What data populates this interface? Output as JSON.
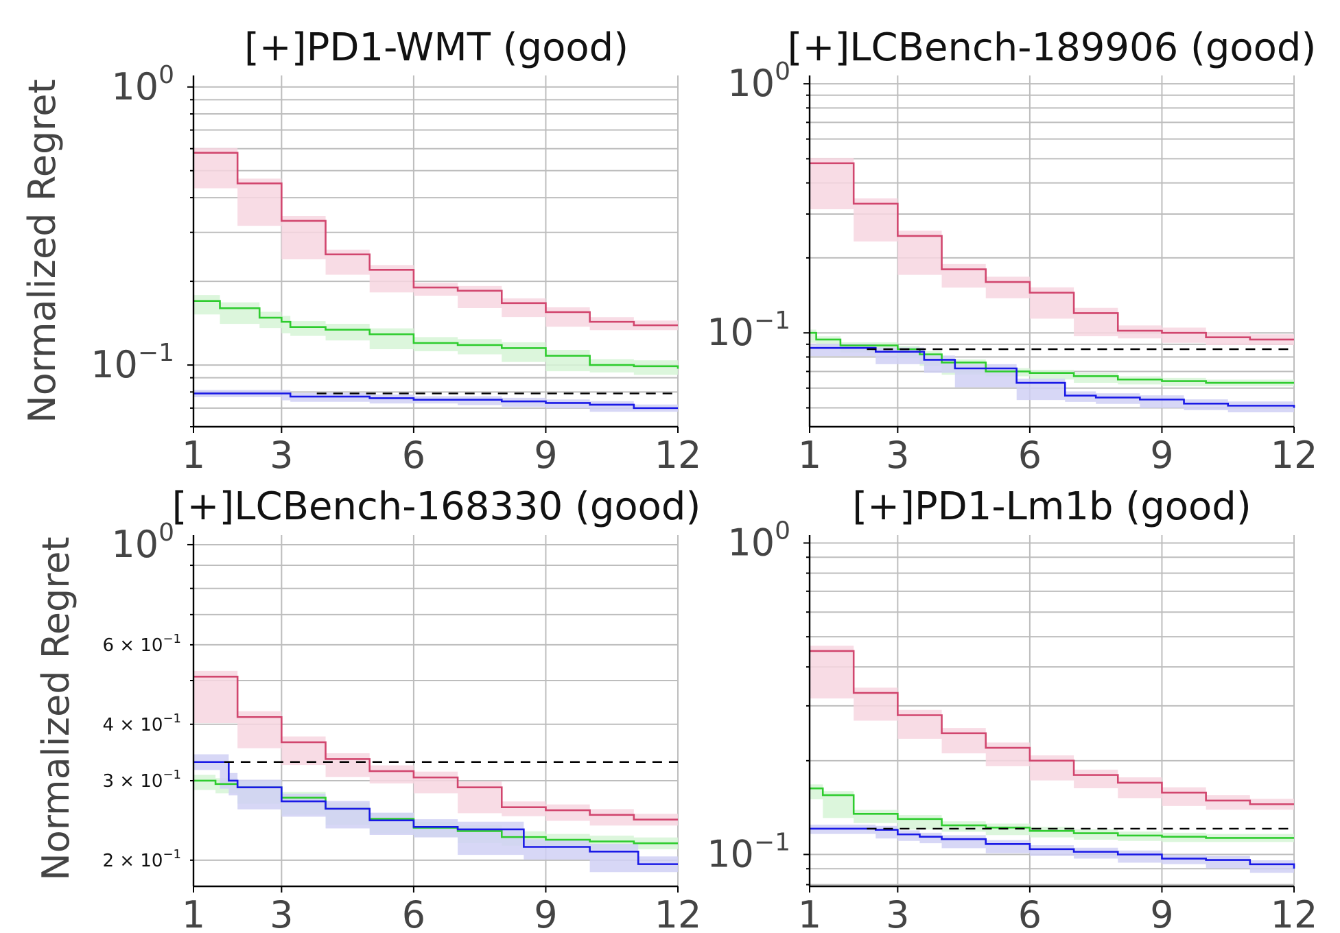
{
  "chart_data": [
    {
      "type": "line",
      "title": "[+]PD1-WMT (good)",
      "ylabel": "Normalized Regret",
      "xlabel": "",
      "yscale": "log",
      "xlim": [
        1,
        12
      ],
      "ylim": [
        0.06,
        1.1
      ],
      "xticks": [
        1,
        3,
        6,
        9,
        12
      ],
      "ytick_labels": [
        {
          "value": 1.0,
          "base": "10",
          "exp": "0"
        },
        {
          "value": 0.1,
          "base": "10",
          "exp": "−1"
        }
      ],
      "grid": true,
      "step": true,
      "series": [
        {
          "color": "#d1466e",
          "band": "#f7d6e0",
          "x": [
            1,
            2,
            3,
            4,
            5,
            6,
            7,
            8,
            9,
            10,
            11,
            12
          ],
          "y": [
            0.58,
            0.45,
            0.33,
            0.25,
            0.22,
            0.19,
            0.185,
            0.167,
            0.155,
            0.143,
            0.139,
            0.139
          ],
          "band_halfwidth": 0.04
        },
        {
          "color": "#2ecc2e",
          "band": "#d6f5d6",
          "x": [
            1,
            1.6,
            2.5,
            3,
            3.2,
            4,
            5,
            6,
            7,
            8,
            9,
            10,
            11,
            12
          ],
          "y": [
            0.17,
            0.16,
            0.148,
            0.143,
            0.137,
            0.134,
            0.129,
            0.12,
            0.118,
            0.115,
            0.108,
            0.1,
            0.099,
            0.097
          ],
          "band_halfwidth": 0.05
        },
        {
          "color": "#1919e6",
          "band": "#d0d0f5",
          "x": [
            1,
            3,
            3.2,
            5,
            6,
            7,
            8,
            9,
            10,
            11,
            12
          ],
          "y": [
            0.079,
            0.079,
            0.077,
            0.076,
            0.075,
            0.075,
            0.074,
            0.073,
            0.072,
            0.07,
            0.07
          ],
          "band_halfwidth": 0.03
        }
      ],
      "hline": {
        "y": 0.079,
        "x_start": 3.8,
        "x_end": 12,
        "style": "dashed",
        "color": "#000000"
      }
    },
    {
      "type": "line",
      "title": "[+]LCBench-189906 (good)",
      "ylabel": "",
      "xlabel": "",
      "yscale": "log",
      "xlim": [
        1,
        12
      ],
      "ylim": [
        0.042,
        1.08
      ],
      "xticks": [
        1,
        3,
        6,
        9,
        12
      ],
      "ytick_labels": [
        {
          "value": 1.0,
          "base": "10",
          "exp": "0"
        },
        {
          "value": 0.1,
          "base": "10",
          "exp": "−1"
        }
      ],
      "grid": true,
      "step": true,
      "series": [
        {
          "color": "#d1466e",
          "band": "#f7d6e0",
          "x": [
            1,
            2,
            3,
            4,
            5,
            6,
            7,
            8,
            9,
            10,
            11,
            12
          ],
          "y": [
            0.48,
            0.33,
            0.245,
            0.18,
            0.16,
            0.145,
            0.12,
            0.102,
            0.1,
            0.096,
            0.094,
            0.094
          ],
          "band_halfwidth": 0.05
        },
        {
          "color": "#2ecc2e",
          "band": "#d6f5d6",
          "x": [
            1,
            1.15,
            1.7,
            3,
            3.5,
            4,
            5,
            6,
            7,
            8,
            9,
            10,
            12
          ],
          "y": [
            0.1,
            0.094,
            0.089,
            0.086,
            0.082,
            0.076,
            0.07,
            0.069,
            0.067,
            0.065,
            0.064,
            0.063,
            0.063
          ],
          "band_halfwidth": 0.03
        },
        {
          "color": "#1919e6",
          "band": "#d0d0f5",
          "x": [
            1,
            2.5,
            3.6,
            4.3,
            5.7,
            6.8,
            7.5,
            8.5,
            9.5,
            10.5,
            12
          ],
          "y": [
            0.087,
            0.084,
            0.078,
            0.072,
            0.063,
            0.056,
            0.055,
            0.054,
            0.052,
            0.051,
            0.05
          ],
          "band_halfwidth": 0.04
        }
      ],
      "hline": {
        "y": 0.086,
        "x_start": 2.3,
        "x_end": 12,
        "style": "dashed",
        "color": "#000000"
      }
    },
    {
      "type": "line",
      "title": "[+]LCBench-168330 (good)",
      "ylabel": "Normalized Regret",
      "xlabel": "",
      "yscale": "log",
      "xlim": [
        1,
        12
      ],
      "ylim": [
        0.175,
        1.05
      ],
      "xticks": [
        1,
        3,
        6,
        9,
        12
      ],
      "ytick_labels": [
        {
          "value": 1.0,
          "base": "10",
          "exp": "0"
        }
      ],
      "minor_tick_labels": [
        {
          "value": 0.6,
          "text": "6 × 10",
          "exp": "−1"
        },
        {
          "value": 0.4,
          "text": "4 × 10",
          "exp": "−1"
        },
        {
          "value": 0.3,
          "text": "3 × 10",
          "exp": "−1"
        },
        {
          "value": 0.2,
          "text": "2 × 10",
          "exp": "−1"
        }
      ],
      "grid": true,
      "step": true,
      "series": [
        {
          "color": "#d1466e",
          "band": "#f7d6e0",
          "x": [
            1,
            2,
            3,
            4,
            5,
            6,
            7,
            8,
            9,
            10,
            11,
            12
          ],
          "y": [
            0.51,
            0.415,
            0.365,
            0.335,
            0.315,
            0.305,
            0.29,
            0.262,
            0.258,
            0.252,
            0.246,
            0.246
          ],
          "band_halfwidth": 0.03
        },
        {
          "color": "#2ecc2e",
          "band": "#d6f5d6",
          "x": [
            1,
            1.5,
            2,
            3,
            4,
            5,
            6,
            7,
            8,
            9,
            10,
            11,
            12
          ],
          "y": [
            0.3,
            0.295,
            0.29,
            0.275,
            0.26,
            0.247,
            0.236,
            0.232,
            0.225,
            0.222,
            0.22,
            0.218,
            0.218
          ],
          "band_halfwidth": 0.03
        },
        {
          "color": "#1919e6",
          "band": "#d0d0f5",
          "x": [
            1,
            1.6,
            1.8,
            2,
            3,
            4,
            5,
            6,
            7,
            8.5,
            10,
            11.1,
            12
          ],
          "y": [
            0.33,
            0.33,
            0.3,
            0.29,
            0.27,
            0.26,
            0.245,
            0.237,
            0.234,
            0.214,
            0.209,
            0.196,
            0.196
          ],
          "band_halfwidth": 0.04
        }
      ],
      "hline": {
        "y": 0.33,
        "x_start": 1.7,
        "x_end": 12,
        "style": "dashed",
        "color": "#000000"
      }
    },
    {
      "type": "line",
      "title": "[+]PD1-Lm1b (good)",
      "ylabel": "",
      "xlabel": "",
      "yscale": "log",
      "xlim": [
        1,
        12
      ],
      "ylim": [
        0.079,
        1.06
      ],
      "xticks": [
        1,
        3,
        6,
        9,
        12
      ],
      "ytick_labels": [
        {
          "value": 1.0,
          "base": "10",
          "exp": "0"
        },
        {
          "value": 0.1,
          "base": "10",
          "exp": "−1"
        }
      ],
      "grid": true,
      "step": true,
      "series": [
        {
          "color": "#d1466e",
          "band": "#f7d6e0",
          "x": [
            1,
            2,
            3,
            4,
            5,
            6,
            7,
            8,
            9,
            10,
            11,
            12
          ],
          "y": [
            0.45,
            0.33,
            0.28,
            0.245,
            0.22,
            0.2,
            0.18,
            0.17,
            0.158,
            0.149,
            0.145,
            0.145
          ],
          "band_halfwidth": 0.04
        },
        {
          "color": "#2ecc2e",
          "band": "#d6f5d6",
          "x": [
            1,
            1.3,
            2,
            3,
            4,
            5,
            6,
            7,
            8,
            9,
            10,
            12
          ],
          "y": [
            0.163,
            0.155,
            0.135,
            0.13,
            0.124,
            0.122,
            0.119,
            0.117,
            0.115,
            0.114,
            0.113,
            0.113
          ],
          "band_halfwidth": 0.03
        },
        {
          "color": "#1919e6",
          "band": "#d0d0f5",
          "x": [
            1,
            2.5,
            3,
            3.5,
            4,
            5,
            6,
            7,
            8,
            9,
            10,
            11,
            12
          ],
          "y": [
            0.121,
            0.12,
            0.116,
            0.114,
            0.112,
            0.108,
            0.104,
            0.102,
            0.1,
            0.097,
            0.096,
            0.093,
            0.09
          ],
          "band_halfwidth": 0.03
        }
      ],
      "hline": {
        "y": 0.121,
        "x_start": 2.3,
        "x_end": 12,
        "style": "dashed",
        "color": "#000000"
      }
    }
  ]
}
